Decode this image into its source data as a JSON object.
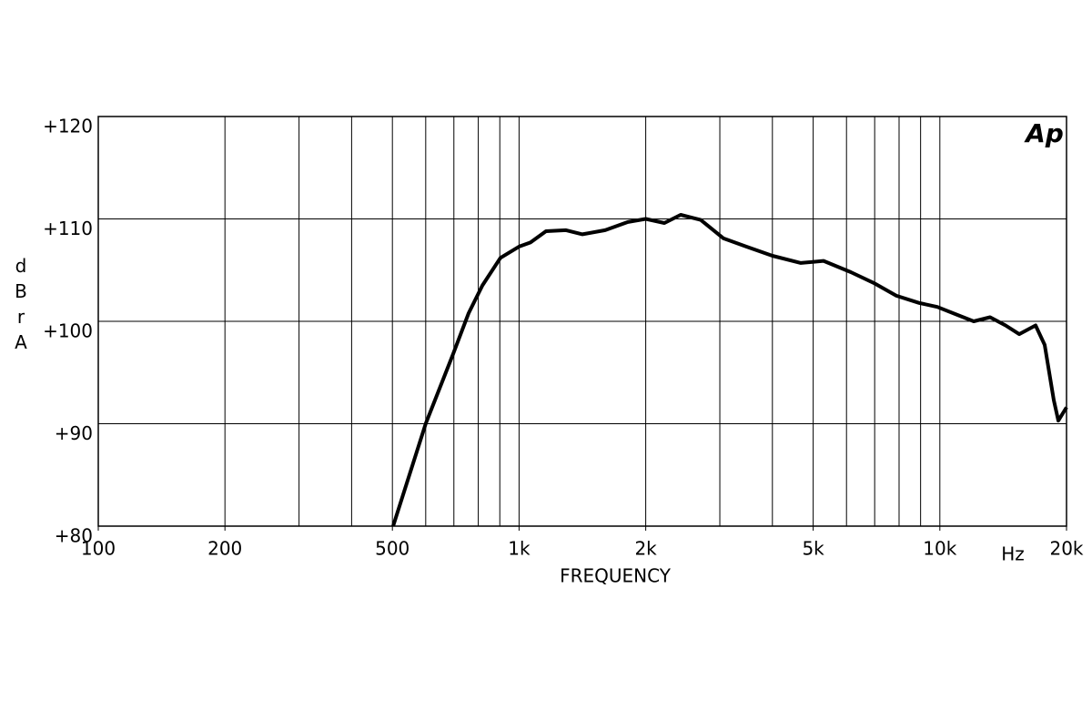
{
  "chart_data": {
    "type": "line",
    "logo": "Ap",
    "xlabel": "FREQUENCY",
    "xunit": "Hz",
    "ylabel": "dBrA",
    "xscale": "log",
    "xlim": [
      100,
      20000
    ],
    "ylim": [
      80,
      120
    ],
    "xticks": [
      100,
      200,
      500,
      {
        "value": 1000,
        "label": "1k"
      },
      {
        "value": 2000,
        "label": "2k"
      },
      {
        "value": 5000,
        "label": "5k"
      },
      {
        "value": 10000,
        "label": "10k"
      },
      {
        "value": 20000,
        "label": "20k"
      }
    ],
    "xgrid": [
      200,
      300,
      400,
      500,
      600,
      700,
      800,
      900,
      1000,
      2000,
      3000,
      4000,
      5000,
      6000,
      7000,
      8000,
      9000,
      10000
    ],
    "yticks": [
      {
        "value": 80,
        "label": "+80"
      },
      {
        "value": 90,
        "label": "+90"
      },
      {
        "value": 100,
        "label": "+100"
      },
      {
        "value": 110,
        "label": "+110"
      },
      {
        "value": 120,
        "label": "+120"
      }
    ],
    "grid": true,
    "series": [
      {
        "color": "#000000",
        "x": [
          502,
          600,
          697,
          759,
          818,
          903,
          1000,
          1064,
          1159,
          1293,
          1414,
          1602,
          1814,
          2000,
          2215,
          2421,
          2702,
          3061,
          3466,
          4000,
          4673,
          5292,
          6143,
          6960,
          7883,
          8928,
          9860,
          10893,
          12035,
          13166,
          14327,
          15440,
          16887,
          17750,
          18650,
          19120,
          20000
        ],
        "values": [
          80,
          90,
          96.8,
          100.8,
          103.5,
          106.2,
          107.3,
          107.7,
          108.8,
          108.9,
          108.5,
          108.9,
          109.7,
          110,
          109.6,
          110.4,
          109.9,
          108.1,
          107.3,
          106.4,
          105.7,
          105.9,
          104.8,
          103.75,
          102.5,
          101.8,
          101.4,
          100.7,
          100,
          100.4,
          99.6,
          98.75,
          99.6,
          97.7,
          92.3,
          90.3,
          91.6
        ]
      }
    ]
  }
}
